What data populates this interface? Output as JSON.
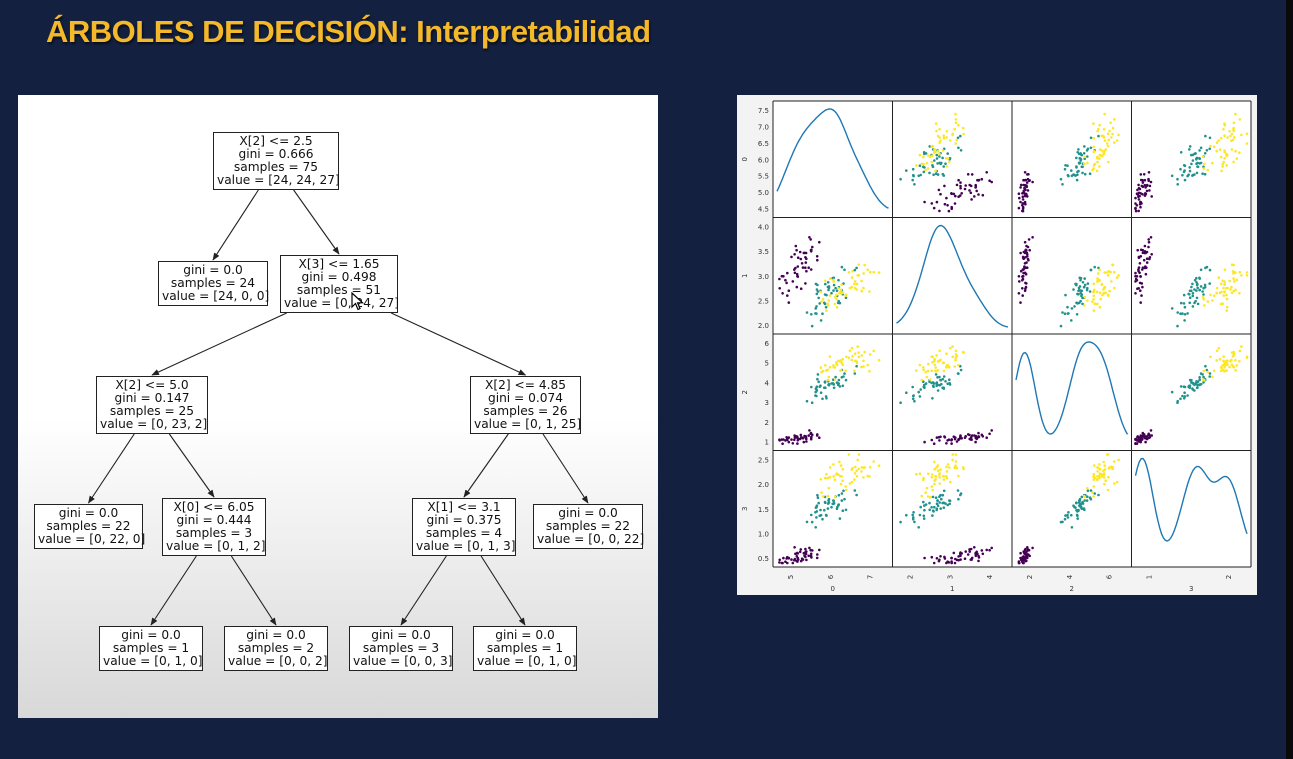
{
  "slide_title": "ÁRBOLES DE DECISIÓN: Interpretabilidad",
  "tree": {
    "nodes": [
      {
        "id": "root",
        "lines": [
          "X[2] <= 2.5",
          "gini = 0.666",
          "samples = 75",
          "value = [24, 24, 27]"
        ]
      },
      {
        "id": "n1",
        "lines": [
          "gini = 0.0",
          "samples = 24",
          "value = [24, 0, 0]"
        ]
      },
      {
        "id": "n2",
        "lines": [
          "X[3] <= 1.65",
          "gini = 0.498",
          "samples = 51",
          "value = [0, 24, 27]"
        ]
      },
      {
        "id": "n3",
        "lines": [
          "X[2] <= 5.0",
          "gini = 0.147",
          "samples = 25",
          "value = [0, 23, 2]"
        ]
      },
      {
        "id": "n4",
        "lines": [
          "X[2] <= 4.85",
          "gini = 0.074",
          "samples = 26",
          "value = [0, 1, 25]"
        ]
      },
      {
        "id": "n5",
        "lines": [
          "gini = 0.0",
          "samples = 22",
          "value = [0, 22, 0]"
        ]
      },
      {
        "id": "n6",
        "lines": [
          "X[0] <= 6.05",
          "gini = 0.444",
          "samples = 3",
          "value = [0, 1, 2]"
        ]
      },
      {
        "id": "n7",
        "lines": [
          "X[1] <= 3.1",
          "gini = 0.375",
          "samples = 4",
          "value = [0, 1, 3]"
        ]
      },
      {
        "id": "n8",
        "lines": [
          "gini = 0.0",
          "samples = 22",
          "value = [0, 0, 22]"
        ]
      },
      {
        "id": "n9",
        "lines": [
          "gini = 0.0",
          "samples = 1",
          "value = [0, 1, 0]"
        ]
      },
      {
        "id": "n10",
        "lines": [
          "gini = 0.0",
          "samples = 2",
          "value = [0, 0, 2]"
        ]
      },
      {
        "id": "n11",
        "lines": [
          "gini = 0.0",
          "samples = 3",
          "value = [0, 0, 3]"
        ]
      },
      {
        "id": "n12",
        "lines": [
          "gini = 0.0",
          "samples = 1",
          "value = [0, 1, 0]"
        ]
      }
    ],
    "edges": [
      [
        "root",
        "n1"
      ],
      [
        "root",
        "n2"
      ],
      [
        "n2",
        "n3"
      ],
      [
        "n2",
        "n4"
      ],
      [
        "n3",
        "n5"
      ],
      [
        "n3",
        "n6"
      ],
      [
        "n4",
        "n7"
      ],
      [
        "n4",
        "n8"
      ],
      [
        "n6",
        "n9"
      ],
      [
        "n6",
        "n10"
      ],
      [
        "n7",
        "n11"
      ],
      [
        "n7",
        "n12"
      ]
    ]
  },
  "scatter_matrix": {
    "variables": [
      "0",
      "1",
      "2",
      "3"
    ],
    "class_colors": [
      "#440154",
      "#21918c",
      "#fde725"
    ],
    "kde_color": "#1f77b4",
    "ticks": {
      "0": [
        "4.5",
        "5.0",
        "5.5",
        "6.0",
        "6.5",
        "7.0",
        "7.5"
      ],
      "1": [
        "2.0",
        "2.5",
        "3.0",
        "3.5",
        "4.0"
      ],
      "2": [
        "1",
        "2",
        "3",
        "4",
        "5",
        "6"
      ],
      "3": [
        "0.5",
        "1.0",
        "1.5",
        "2.0",
        "2.5"
      ]
    },
    "x_ticks": {
      "0": [
        "5",
        "6",
        "7"
      ],
      "1": [
        "2",
        "3",
        "4"
      ],
      "2": [
        "2",
        "4",
        "6"
      ],
      "3": [
        "1",
        "2"
      ]
    },
    "ranges": {
      "0": [
        4.3,
        7.9
      ],
      "1": [
        2.0,
        4.4
      ],
      "2": [
        1.0,
        6.9
      ],
      "3": [
        0.1,
        2.5
      ]
    }
  }
}
